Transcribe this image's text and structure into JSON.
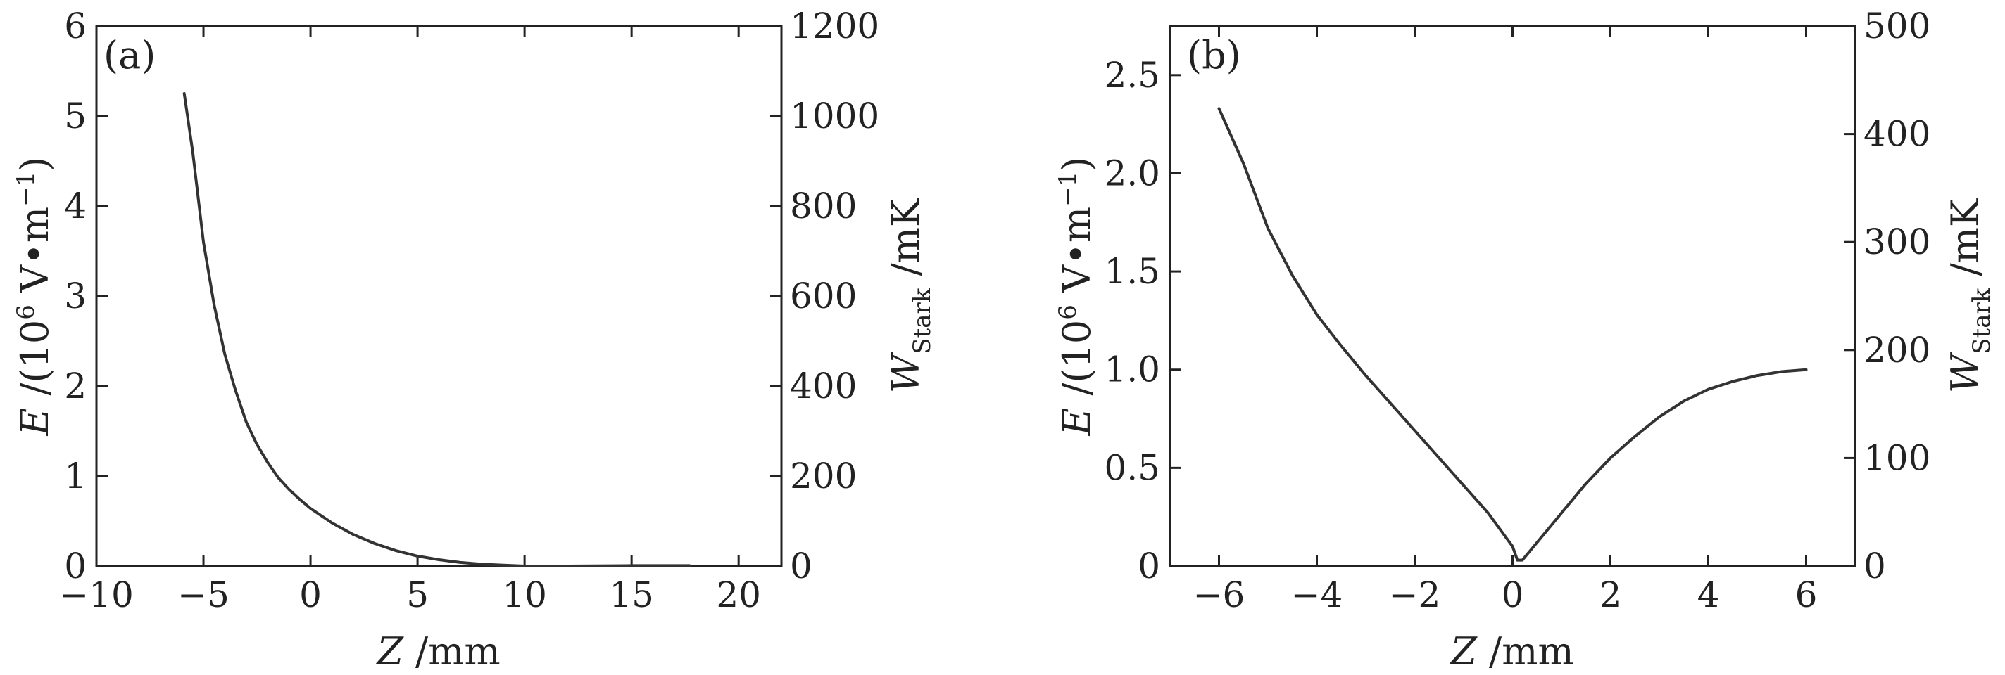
{
  "chart_data": [
    {
      "type": "line",
      "panel_label": "(a)",
      "xlabel": {
        "var": "Z",
        "unit": " /mm"
      },
      "ylabel_left": {
        "var": "E",
        "unit": " /(10",
        "exp": "6",
        "unit2": " V•m",
        "exp2": "−1",
        "close": ")"
      },
      "ylabel_right": {
        "var": "W",
        "sub": "Stark",
        "unit": " /mK"
      },
      "xlim": [
        -10,
        22
      ],
      "ylim_left": [
        0,
        6
      ],
      "ylim_right": [
        0,
        1200
      ],
      "x_ticks": [
        -10,
        -5,
        0,
        5,
        10,
        15,
        20
      ],
      "x_tick_labels": [
        "−10",
        "−5",
        "0",
        "5",
        "10",
        "15",
        "20"
      ],
      "y_left_ticks": [
        0,
        1,
        2,
        3,
        4,
        5,
        6
      ],
      "y_left_tick_labels": [
        "0",
        "1",
        "2",
        "3",
        "4",
        "5",
        "6"
      ],
      "y_right_ticks": [
        0,
        200,
        400,
        600,
        800,
        1000,
        1200
      ],
      "y_right_tick_labels": [
        "0",
        "200",
        "400",
        "600",
        "800",
        "1000",
        "1200"
      ],
      "legend": "none",
      "grid": false,
      "line_color": "#333333",
      "series": [
        {
          "x": [
            -5.9,
            -5.5,
            -5,
            -4.5,
            -4,
            -3.5,
            -3,
            -2.5,
            -2,
            -1.5,
            -1,
            -0.5,
            0,
            1,
            2,
            3,
            4,
            5,
            6,
            7,
            8,
            9,
            10,
            12,
            15,
            17.7
          ],
          "y": [
            5.25,
            4.6,
            3.6,
            2.9,
            2.35,
            1.95,
            1.6,
            1.35,
            1.15,
            0.98,
            0.85,
            0.74,
            0.64,
            0.48,
            0.35,
            0.25,
            0.17,
            0.11,
            0.07,
            0.04,
            0.02,
            0.01,
            0.0,
            0.0,
            0.005,
            0.005
          ]
        }
      ]
    },
    {
      "type": "line",
      "panel_label": "(b)",
      "xlabel": {
        "var": "Z",
        "unit": " /mm"
      },
      "ylabel_left": {
        "var": "E",
        "unit": " /(10",
        "exp": "6",
        "unit2": " V•m",
        "exp2": "−1",
        "close": ")"
      },
      "ylabel_right": {
        "var": "W",
        "sub": "Stark",
        "unit": " /mK"
      },
      "xlim": [
        -7,
        7
      ],
      "ylim_left": [
        0,
        2.75
      ],
      "ylim_right": [
        0,
        500
      ],
      "x_ticks": [
        -6,
        -4,
        -2,
        0,
        2,
        4,
        6
      ],
      "x_tick_labels": [
        "−6",
        "−4",
        "−2",
        "0",
        "2",
        "4",
        "6"
      ],
      "y_left_ticks": [
        0,
        0.5,
        1.0,
        1.5,
        2.0,
        2.5
      ],
      "y_left_tick_labels": [
        "0",
        "0.5",
        "1.0",
        "1.5",
        "2.0",
        "2.5"
      ],
      "y_right_ticks": [
        0,
        100,
        200,
        300,
        400,
        500
      ],
      "y_right_tick_labels": [
        "0",
        "100",
        "200",
        "300",
        "400",
        "500"
      ],
      "legend": "none",
      "grid": false,
      "line_color": "#333333",
      "series": [
        {
          "x": [
            -6.0,
            -5.5,
            -5.0,
            -4.5,
            -4.0,
            -3.5,
            -3.0,
            -2.5,
            -2.0,
            -1.5,
            -1.0,
            -0.5,
            0.0,
            0.1,
            0.2,
            0.5,
            1.0,
            1.5,
            2.0,
            2.5,
            3.0,
            3.5,
            4.0,
            4.5,
            5.0,
            5.5,
            6.0
          ],
          "y": [
            2.33,
            2.05,
            1.72,
            1.48,
            1.28,
            1.12,
            0.97,
            0.83,
            0.69,
            0.55,
            0.41,
            0.27,
            0.1,
            0.03,
            0.03,
            0.12,
            0.27,
            0.42,
            0.55,
            0.66,
            0.76,
            0.84,
            0.9,
            0.94,
            0.97,
            0.99,
            1.0
          ]
        }
      ]
    }
  ]
}
